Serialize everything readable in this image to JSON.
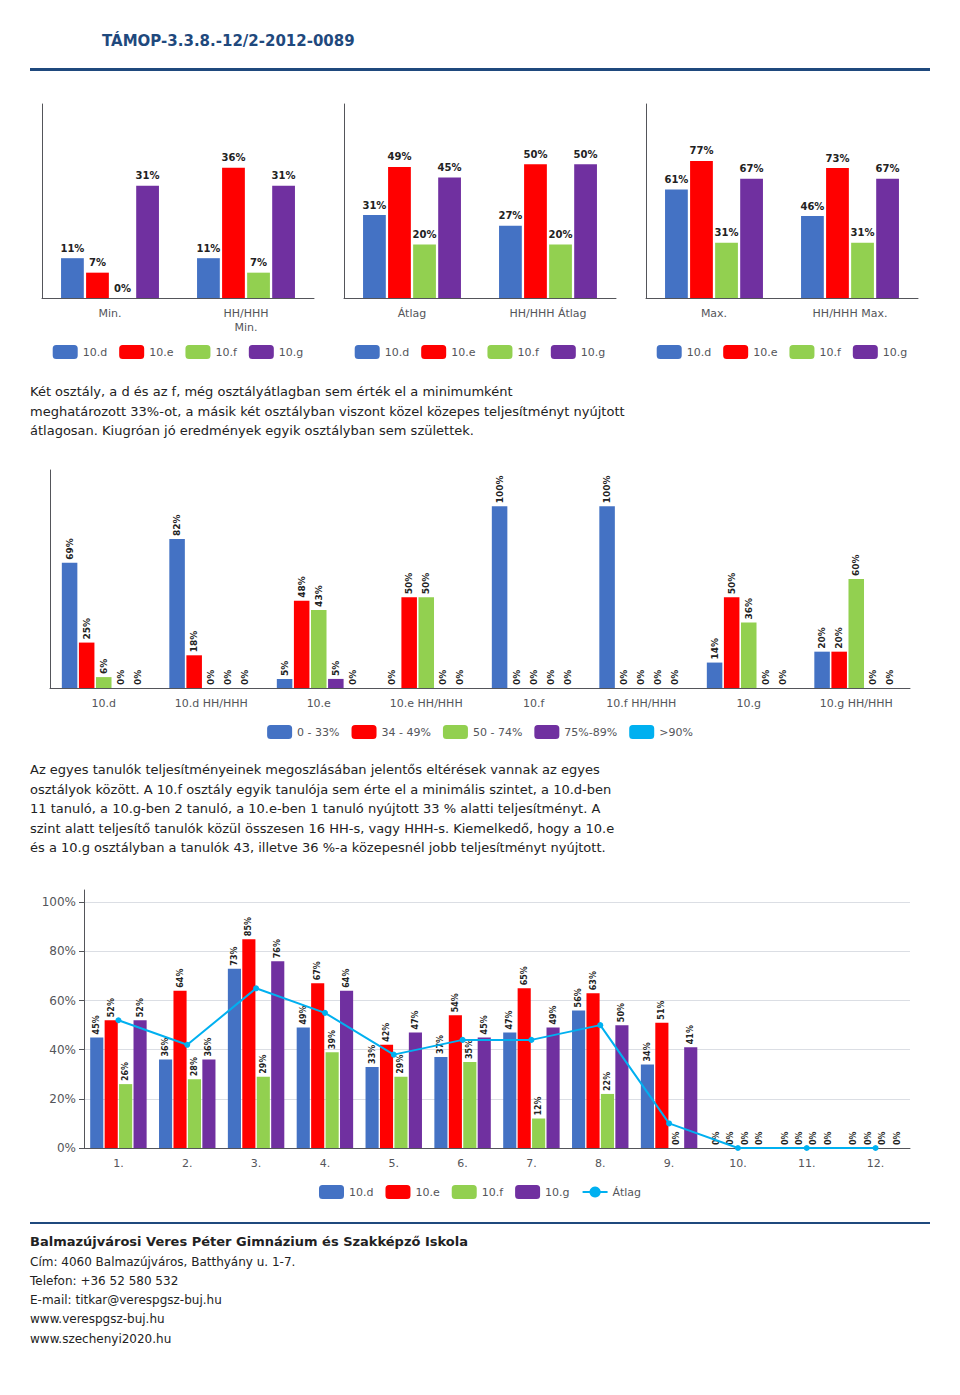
{
  "annotations": [
    "TÁMOP-3.3.8.-12/2-2012-0089",
    "Két osztály, a d és az f, még osztályátlagban sem érték el a minimumként\nmeghatározott 33%-ot, a másik két osztályban viszont közel közepes teljesítményt nyújtott\nátlagosan. Kiugróan jó eredmények egyik osztályban sem születtek.",
    "Az egyes tanulók teljesítményeinek megoszlásában jelentős eltérések vannak az egyes\nosztályok között. A 10.f osztály egyik tanulója sem érte el a minimális szintet, a 10.d-ben\n11 tanuló, a 10.g-ben 2 tanuló, a 10.e-ben 1 tanuló nyújtott 33 % alatti teljesítményt. A\nszint alatt teljesítő tanulók közül összesen 16 HH-s, vagy HHH-s. Kiemelkedő, hogy a 10.e\nés a 10.g osztályban a tanulók 43, illetve 36 %-a közepesnél jobb teljesítményt nyújtott.",
    "Balmazújvárosi Veres Péter Gimnázium és Szakképző Iskola",
    "Cím: 4060 Balmazújváros, Batthyány u. 1-7.",
    "Telefon: +36 52 580 532",
    "E-mail: titkar@verespgsz-buj.hu",
    "www.verespgsz-buj.hu",
    "www.szechenyi2020.hu"
  ],
  "chart_data": [
    {
      "type": "bar",
      "categories": [
        "Min.",
        "HH/HHH\nMin."
      ],
      "series": [
        {
          "name": "10.d",
          "color": "#4472C4",
          "values": [
            11,
            11
          ],
          "value_labels": [
            "11%",
            "11%"
          ]
        },
        {
          "name": "10.e",
          "color": "#FF0000",
          "values": [
            7,
            36
          ],
          "value_labels": [
            "7%",
            "36%"
          ]
        },
        {
          "name": "10.f",
          "color": "#92D050",
          "values": [
            0,
            7
          ],
          "value_labels": [
            "0%",
            "7%"
          ]
        },
        {
          "name": "10.g",
          "color": "#7030A0",
          "values": [
            31,
            31
          ],
          "value_labels": [
            "31%",
            "31%"
          ]
        }
      ],
      "ylim": [
        0,
        53.6
      ],
      "tick_labels": "x",
      "grid": false,
      "legend": "bottom",
      "data_labels": true
    },
    {
      "type": "bar",
      "categories": [
        "Átlag",
        "HH/HHH Átlag"
      ],
      "series": [
        {
          "name": "10.d",
          "color": "#4472C4",
          "values": [
            31,
            27
          ],
          "value_labels": [
            "31%",
            "27%"
          ]
        },
        {
          "name": "10.e",
          "color": "#FF0000",
          "values": [
            49,
            50
          ],
          "value_labels": [
            "49%",
            "50%"
          ]
        },
        {
          "name": "10.f",
          "color": "#92D050",
          "values": [
            20,
            20
          ],
          "value_labels": [
            "20%",
            "20%"
          ]
        },
        {
          "name": "10.g",
          "color": "#7030A0",
          "values": [
            45,
            50
          ],
          "value_labels": [
            "45%",
            "50%"
          ]
        }
      ],
      "ylim": [
        0,
        72.5
      ],
      "tick_labels": "x",
      "grid": false,
      "legend": "bottom",
      "data_labels": true
    },
    {
      "type": "bar",
      "categories": [
        "Max.",
        "HH/HHH Max."
      ],
      "series": [
        {
          "name": "10.d",
          "color": "#4472C4",
          "values": [
            61,
            46
          ],
          "value_labels": [
            "61%",
            "46%"
          ]
        },
        {
          "name": "10.e",
          "color": "#FF0000",
          "values": [
            77,
            73
          ],
          "value_labels": [
            "77%",
            "73%"
          ]
        },
        {
          "name": "10.f",
          "color": "#92D050",
          "values": [
            31,
            31
          ],
          "value_labels": [
            "31%",
            "31%"
          ]
        },
        {
          "name": "10.g",
          "color": "#7030A0",
          "values": [
            67,
            67
          ],
          "value_labels": [
            "67%",
            "67%"
          ]
        }
      ],
      "ylim": [
        0,
        108.95
      ],
      "tick_labels": "x",
      "grid": false,
      "legend": "bottom",
      "data_labels": true
    },
    {
      "type": "bar",
      "categories": [
        "10.d",
        "10.d HH/HHH",
        "10.e",
        "10.e HH/HHH",
        "10.f",
        "10.f HH/HHH",
        "10.g",
        "10.g HH/HHH"
      ],
      "series": [
        {
          "name": "0 - 33%",
          "color": "#4472C4",
          "values": [
            69,
            82,
            5,
            0,
            100,
            100,
            14,
            20
          ],
          "value_labels": [
            "69%",
            "82%",
            "5%",
            "0%",
            "100%",
            "100%",
            "14%",
            "20%"
          ]
        },
        {
          "name": "34 - 49%",
          "color": "#FF0000",
          "values": [
            25,
            18,
            48,
            50,
            0,
            0,
            50,
            20
          ],
          "value_labels": [
            "25%",
            "18%",
            "48%",
            "50%",
            "0%",
            "0%",
            "50%",
            "20%"
          ]
        },
        {
          "name": "50 - 74%",
          "color": "#92D050",
          "values": [
            6,
            0,
            43,
            50,
            0,
            0,
            36,
            60
          ],
          "value_labels": [
            "6%",
            "0%",
            "43%",
            "50%",
            "0%",
            "0%",
            "36%",
            "60%"
          ]
        },
        {
          "name": "75%-89%",
          "color": "#7030A0",
          "values": [
            0,
            0,
            5,
            0,
            0,
            0,
            0,
            0
          ],
          "value_labels": [
            "0%",
            "0%",
            "5%",
            "0%",
            "0%",
            "0%",
            "0%",
            "0%"
          ]
        },
        {
          "name": ">90%",
          "color": "#00B0F0",
          "values": [
            0,
            0,
            0,
            0,
            0,
            0,
            0,
            0
          ],
          "value_labels": [
            "0%",
            "0%",
            "0%",
            "0%",
            "0%",
            "0%",
            "0%",
            "0%"
          ]
        }
      ],
      "ylim": [
        0,
        120
      ],
      "tick_labels": "x",
      "grid": false,
      "legend": "bottom",
      "data_labels": true
    },
    {
      "type": "bar",
      "categories": [
        "1.",
        "2.",
        "3.",
        "4.",
        "5.",
        "6.",
        "7.",
        "8.",
        "9.",
        "10.",
        "11.",
        "12."
      ],
      "series": [
        {
          "name": "10.d",
          "color": "#4472C4",
          "data_labels": true,
          "values": [
            45,
            36,
            73,
            49,
            33,
            37,
            47,
            56,
            34,
            0,
            0,
            0
          ],
          "value_labels": [
            "45%",
            "36%",
            "73%",
            "49%",
            "33%",
            "37%",
            "47%",
            "56%",
            "34%",
            "0%",
            "0%",
            "0%"
          ]
        },
        {
          "name": "10.e",
          "color": "#FF0000",
          "data_labels": true,
          "values": [
            52,
            64,
            85,
            67,
            42,
            54,
            65,
            63,
            51,
            0,
            0,
            0
          ],
          "value_labels": [
            "52%",
            "64%",
            "85%",
            "67%",
            "42%",
            "54%",
            "65%",
            "63%",
            "51%",
            "0%",
            "0%",
            "0%"
          ]
        },
        {
          "name": "10.f",
          "color": "#92D050",
          "data_labels": true,
          "values": [
            26,
            28,
            29,
            39,
            29,
            35,
            12,
            22,
            0,
            0,
            0,
            0
          ],
          "value_labels": [
            "26%",
            "28%",
            "29%",
            "39%",
            "29%",
            "35%",
            "12%",
            "22%",
            "0%",
            "0%",
            "0%",
            "0%"
          ]
        },
        {
          "name": "10.g",
          "color": "#7030A0",
          "data_labels": true,
          "values": [
            52,
            36,
            76,
            64,
            47,
            45,
            49,
            50,
            41,
            0,
            0,
            0
          ],
          "value_labels": [
            "52%",
            "36%",
            "76%",
            "64%",
            "47%",
            "45%",
            "49%",
            "50%",
            "41%",
            "0%",
            "0%",
            "0%"
          ]
        },
        {
          "name": "Átlag",
          "type": "line",
          "color": "#00B0F0",
          "marker": "circle",
          "values": [
            52,
            42,
            65,
            55,
            38,
            44,
            44,
            50,
            10,
            0,
            0,
            0
          ]
        }
      ],
      "ylim": [
        0,
        105
      ],
      "yticks": [
        {
          "value": 0,
          "label": "0%"
        },
        {
          "value": 20,
          "label": "20%"
        },
        {
          "value": 40,
          "label": "40%"
        },
        {
          "value": 60,
          "label": "60%"
        },
        {
          "value": 80,
          "label": "80%"
        },
        {
          "value": 100,
          "label": "100%"
        }
      ],
      "grid": true,
      "legend": "bottom"
    }
  ]
}
